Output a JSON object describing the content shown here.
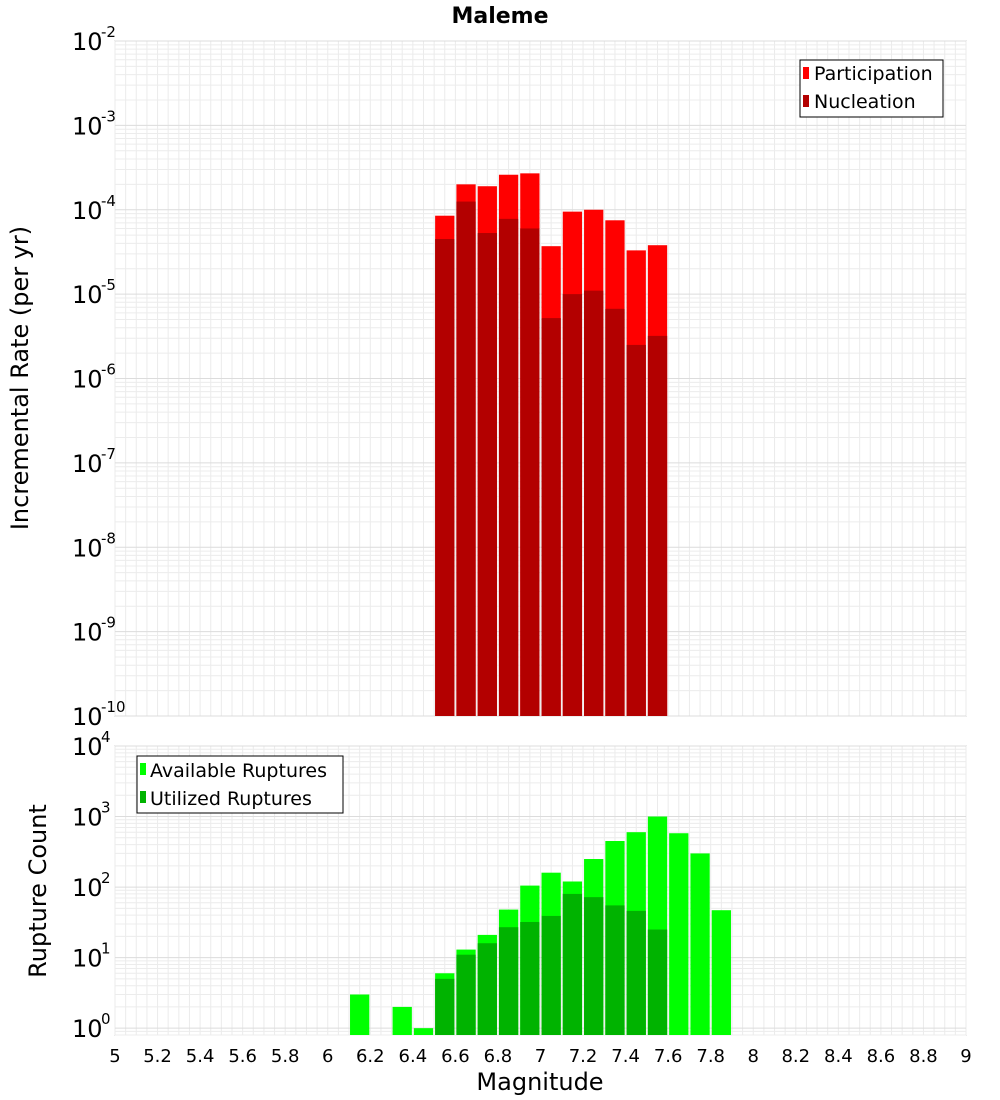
{
  "chart_data": [
    {
      "type": "bar",
      "title": "Maleme",
      "xlabel": "",
      "ylabel": "Incremental Rate (per yr)",
      "yscale": "log",
      "ylim": [
        1e-10,
        0.01
      ],
      "xlim": [
        5,
        9
      ],
      "bin_width": 0.1,
      "grid": true,
      "legend_position": "top-right",
      "y_tick_base": "10",
      "y_tick_exponents": [
        "-10",
        "-9",
        "-8",
        "-7",
        "-6",
        "-5",
        "-4",
        "-3",
        "-2"
      ],
      "series": [
        {
          "name": "Participation",
          "color": "#ff0000",
          "x": [
            6.55,
            6.65,
            6.75,
            6.85,
            6.95,
            7.05,
            7.15,
            7.25,
            7.35,
            7.45,
            7.55
          ],
          "values": [
            8.5e-05,
            0.0002,
            0.00019,
            0.00026,
            0.00027,
            3.7e-05,
            9.5e-05,
            0.0001,
            7.5e-05,
            3.3e-05,
            3.8e-05
          ]
        },
        {
          "name": "Nucleation",
          "color": "#b30000",
          "x": [
            6.55,
            6.65,
            6.75,
            6.85,
            6.95,
            7.05,
            7.15,
            7.25,
            7.35,
            7.45,
            7.55
          ],
          "values": [
            4.5e-05,
            0.000125,
            5.3e-05,
            7.8e-05,
            6e-05,
            5.2e-06,
            1e-05,
            1.1e-05,
            6.7e-06,
            2.5e-06,
            3.2e-06
          ]
        }
      ]
    },
    {
      "type": "bar",
      "title": "",
      "xlabel": "Magnitude",
      "ylabel": "Rupture Count",
      "yscale": "log",
      "ylim": [
        0.8,
        10000
      ],
      "xlim": [
        5,
        9
      ],
      "bin_width": 0.1,
      "grid": true,
      "legend_position": "top-left",
      "y_tick_base": "10",
      "y_tick_exponents": [
        "0",
        "1",
        "2",
        "3",
        "4"
      ],
      "x_ticks": [
        "5",
        "5.2",
        "5.4",
        "5.6",
        "5.8",
        "6",
        "6.2",
        "6.4",
        "6.6",
        "6.8",
        "7",
        "7.2",
        "7.4",
        "7.6",
        "7.8",
        "8",
        "8.2",
        "8.4",
        "8.6",
        "8.8",
        "9"
      ],
      "series": [
        {
          "name": "Available Ruptures",
          "color": "#00ff00",
          "x": [
            6.15,
            6.35,
            6.45,
            6.55,
            6.65,
            6.75,
            6.85,
            6.95,
            7.05,
            7.15,
            7.25,
            7.35,
            7.45,
            7.55,
            7.65,
            7.75,
            7.85
          ],
          "values": [
            3,
            2,
            1,
            6,
            13,
            21,
            48,
            105,
            160,
            120,
            250,
            450,
            600,
            1000,
            580,
            300,
            47
          ]
        },
        {
          "name": "Utilized Ruptures",
          "color": "#00b300",
          "x": [
            6.55,
            6.65,
            6.75,
            6.85,
            6.95,
            7.05,
            7.15,
            7.25,
            7.35,
            7.45,
            7.55
          ],
          "values": [
            5,
            11,
            16,
            27,
            32,
            39,
            80,
            72,
            55,
            46,
            25
          ]
        }
      ]
    }
  ]
}
